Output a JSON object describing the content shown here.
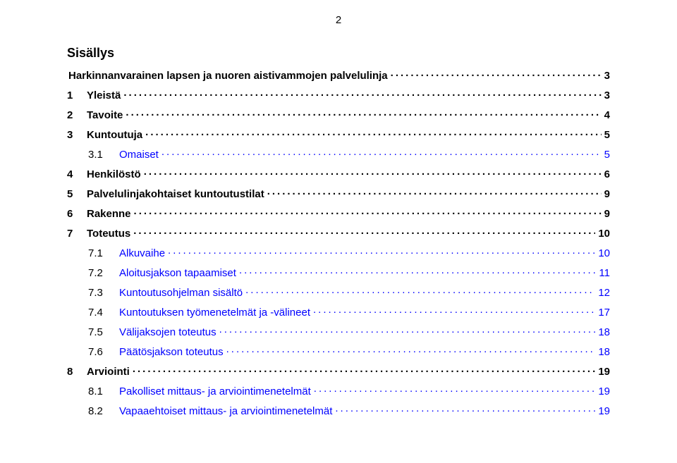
{
  "page_number": "2",
  "title": "Sisällys",
  "toc": [
    {
      "level": "l20",
      "num": "",
      "label": "Harkinnanvarainen lapsen ja nuoren aistivammojen palvelulinja",
      "page": "3"
    },
    {
      "level": "l1",
      "num": "1",
      "label": "Yleistä",
      "page": "3"
    },
    {
      "level": "l1",
      "num": "2",
      "label": "Tavoite",
      "page": "4"
    },
    {
      "level": "l1",
      "num": "3",
      "label": "Kuntoutuja",
      "page": "5"
    },
    {
      "level": "l2",
      "num": "3.1",
      "label": "Omaiset",
      "page": "5"
    },
    {
      "level": "l1",
      "num": "4",
      "label": "Henkilöstö",
      "page": "6"
    },
    {
      "level": "l1",
      "num": "5",
      "label": "Palvelulinjakohtaiset kuntoutustilat",
      "page": "9"
    },
    {
      "level": "l1",
      "num": "6",
      "label": "Rakenne",
      "page": "9"
    },
    {
      "level": "l1",
      "num": "7",
      "label": "Toteutus",
      "page": "10"
    },
    {
      "level": "l2",
      "num": "7.1",
      "label": "Alkuvaihe",
      "page": "10"
    },
    {
      "level": "l2",
      "num": "7.2",
      "label": "Aloitusjakson tapaamiset",
      "page": "11"
    },
    {
      "level": "l2",
      "num": "7.3",
      "label": "Kuntoutusohjelman sisältö",
      "page": "12"
    },
    {
      "level": "l2",
      "num": "7.4",
      "label": "Kuntoutuksen työmenetelmät ja -välineet",
      "page": "17"
    },
    {
      "level": "l2",
      "num": "7.5",
      "label": "Välijaksojen toteutus",
      "page": "18"
    },
    {
      "level": "l2",
      "num": "7.6",
      "label": "Päätösjakson toteutus",
      "page": "18"
    },
    {
      "level": "l1",
      "num": "8",
      "label": "Arviointi",
      "page": "19"
    },
    {
      "level": "l2",
      "num": "8.1",
      "label": "Pakolliset mittaus- ja arviointimenetelmät",
      "page": "19"
    },
    {
      "level": "l2",
      "num": "8.2",
      "label": "Vapaaehtoiset mittaus- ja arviointimenetelmät",
      "page": "19"
    }
  ]
}
